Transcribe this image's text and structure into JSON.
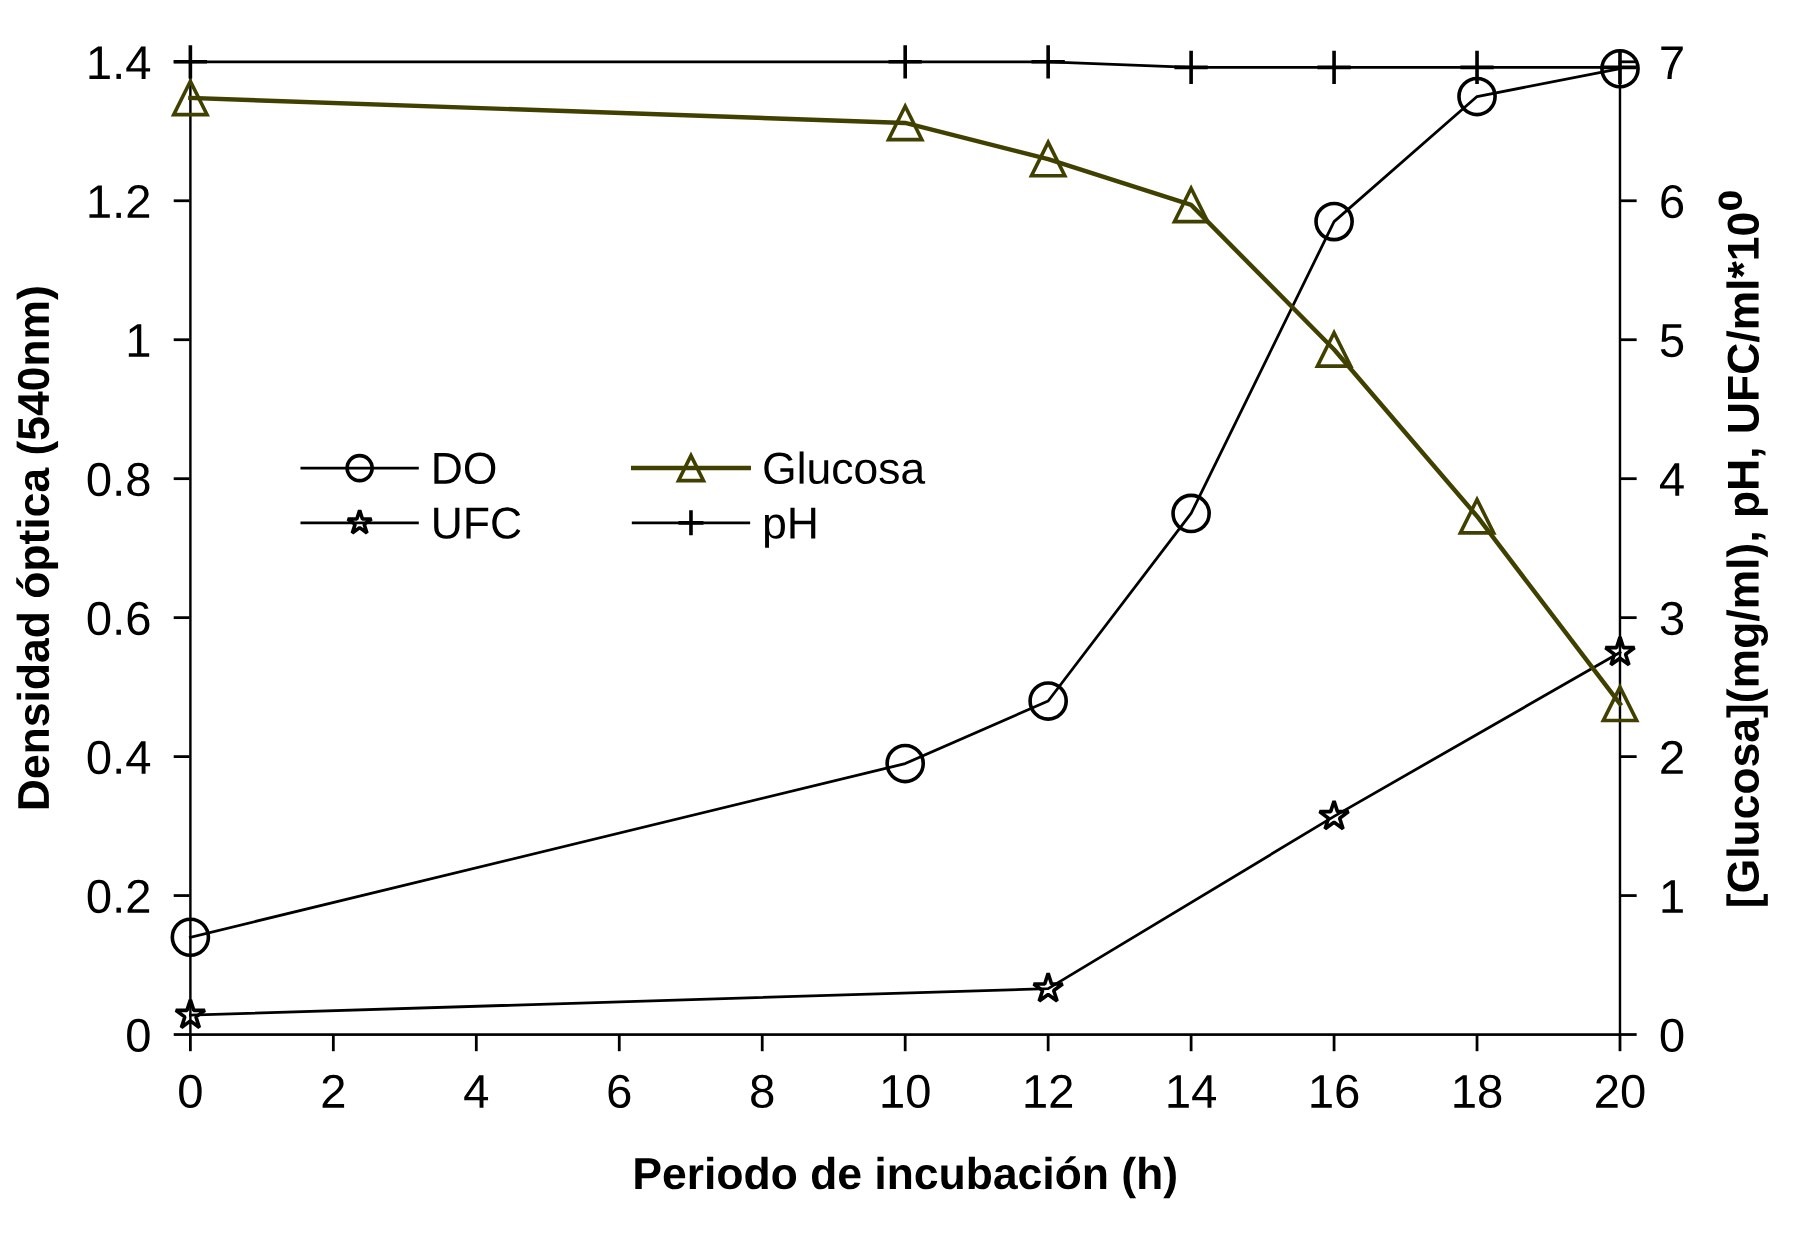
{
  "chart_data": {
    "type": "line",
    "xlabel": "Periodo de incubación (h)",
    "ylabel": "Densidad óptica (540nm)",
    "y2label": "[Glucosa](mg/ml), pH, UFC/ml*10$^{0}$",
    "xlim": [
      0,
      20
    ],
    "xticks": [
      0,
      2,
      4,
      6,
      8,
      10,
      12,
      14,
      16,
      18,
      20
    ],
    "ylim": [
      0,
      1.4
    ],
    "yticks": [
      0,
      0.2,
      0.4,
      0.6,
      0.8,
      1,
      1.2,
      1.4
    ],
    "y2lim": [
      0,
      7
    ],
    "y2ticks": [
      0,
      1,
      2,
      3,
      4,
      5,
      6,
      7
    ],
    "grid": false,
    "legend": "center left",
    "line_style": "solid",
    "series": [
      {
        "name": "DO",
        "color": "#000000",
        "marker": "circle",
        "x": [
          0,
          10,
          12,
          14,
          16,
          18,
          20
        ],
        "values": [
          0.14,
          0.39,
          0.48,
          0.75,
          1.17,
          1.35,
          1.39
        ]
      },
      {
        "name": "UFC",
        "color": "#000000",
        "marker": "star",
        "axis": "y2",
        "x": [
          0,
          12,
          16,
          20
        ],
        "values": [
          0.14,
          0.33,
          1.57,
          2.75
        ]
      },
      {
        "name": "Glucosa",
        "color": "#404000",
        "marker": "triangle",
        "axis": "y2",
        "x": [
          0,
          10,
          12,
          14,
          16,
          18,
          20
        ],
        "values": [
          6.74,
          6.56,
          6.3,
          5.97,
          4.93,
          3.73,
          2.38
        ]
      },
      {
        "name": "pH",
        "color": "#000000",
        "marker": "cross",
        "axis": "y2",
        "x": [
          0,
          10,
          12,
          14,
          16,
          18,
          20
        ],
        "values": [
          7.0,
          7.0,
          7.0,
          6.96,
          6.96,
          6.96,
          6.96
        ]
      }
    ]
  }
}
